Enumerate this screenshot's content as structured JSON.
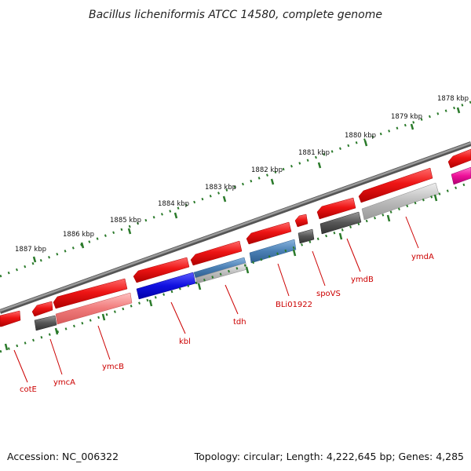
{
  "title": "Bacillus licheniformis ATCC 14580, complete genome",
  "footer": {
    "accession": "Accession: NC_006322",
    "topology": "Topology: circular; Length: 4,222,645 bp; Genes: 4,285"
  },
  "kbp_labels": [
    "1878 kbp",
    "1879 kbp",
    "1880 kbp",
    "1881 kbp",
    "1882 kbp",
    "1883 kbp",
    "1884 kbp",
    "1885 kbp",
    "1886 kbp",
    "1887 kbp"
  ],
  "gene_labels": [
    "cotE",
    "ymcA",
    "ymcB",
    "kbl",
    "tdh",
    "BLi01922",
    "spoVS",
    "ymdB",
    "ymdA"
  ],
  "colors": {
    "backbone": "#777777",
    "tick": "#2a7a2a",
    "label": "#cc0000",
    "gene_red": "#e01010",
    "gene_pink": "#f07878",
    "gene_blue": "#1010dd",
    "gene_steel": "#4477aa",
    "gene_dark": "#555555",
    "gene_gray": "#aaaaaa",
    "gene_magenta": "#ee1199"
  }
}
